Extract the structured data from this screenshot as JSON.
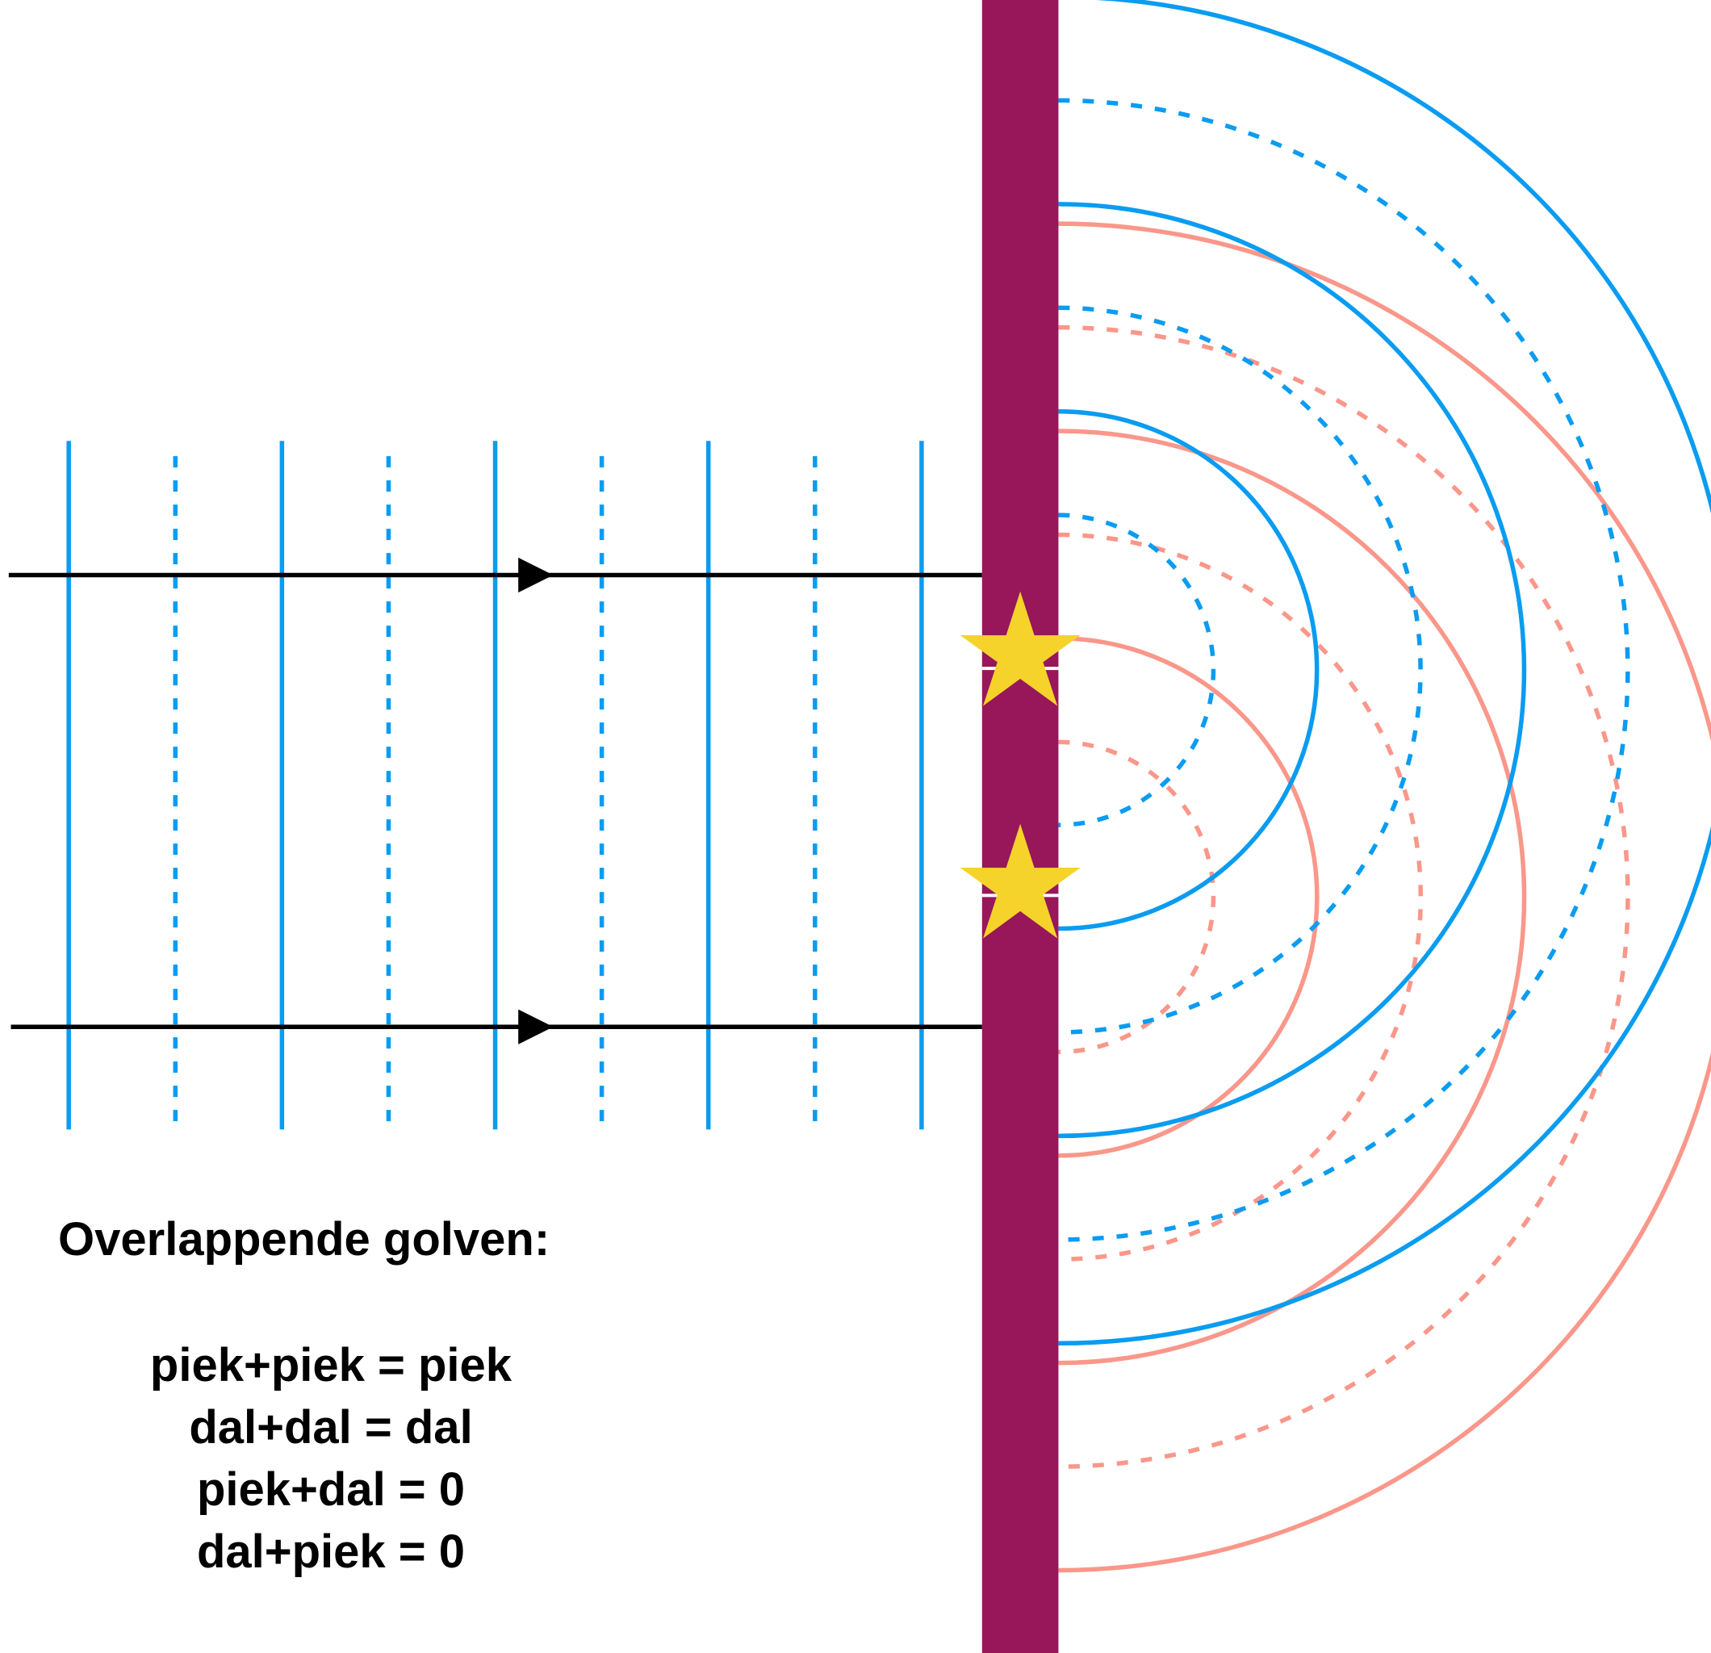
{
  "caption": {
    "title": "Overlappende golven:",
    "rules": [
      "piek+piek = piek",
      "dal+dal = dal",
      "piek+dal = 0",
      "dal+piek = 0"
    ]
  },
  "colors": {
    "barrier": "#97175a",
    "wave_blue": "#0a9cf0",
    "wave_pink": "#fa978a",
    "ray": "#000000",
    "star": "#f5d32b",
    "background": "#ffffff"
  },
  "legend_meaning": {
    "solid_line": "piek",
    "dashed_line": "dal"
  },
  "icons": {
    "slit_marker": "star-icon",
    "ray_head": "arrow-head-icon"
  },
  "slits": {
    "count": 2
  },
  "incoming_wavefronts": {
    "count": 9,
    "pattern": [
      "piek",
      "dal",
      "piek",
      "dal",
      "piek",
      "dal",
      "piek",
      "dal",
      "piek"
    ]
  },
  "circular_wavefronts": {
    "upper_slit": {
      "color": "blue",
      "pattern": [
        "dal",
        "piek",
        "dal",
        "piek",
        "dal",
        "piek"
      ]
    },
    "lower_slit": {
      "color": "pink",
      "pattern": [
        "dal",
        "piek",
        "dal",
        "piek",
        "dal",
        "piek"
      ]
    }
  }
}
